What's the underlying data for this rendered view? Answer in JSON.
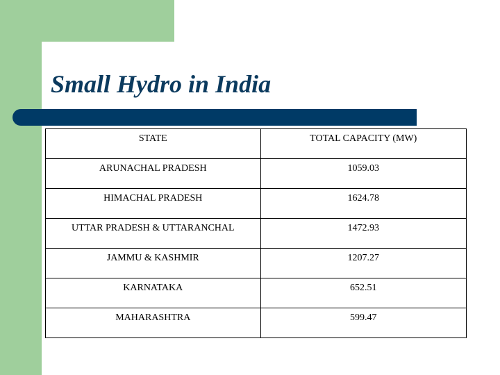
{
  "slide": {
    "title": "Small Hydro in India",
    "colors": {
      "accent_green": "#9fcf9c",
      "rule_blue": "#003a66",
      "title_color": "#0b3a5e"
    }
  },
  "table": {
    "headers": [
      "STATE",
      "TOTAL CAPACITY (MW)"
    ],
    "rows": [
      {
        "state": "ARUNACHAL PRADESH",
        "capacity": "1059.03"
      },
      {
        "state": "HIMACHAL PRADESH",
        "capacity": "1624.78"
      },
      {
        "state": "UTTAR PRADESH & UTTARANCHAL",
        "capacity": "1472.93"
      },
      {
        "state": "JAMMU & KASHMIR",
        "capacity": "1207.27"
      },
      {
        "state": "KARNATAKA",
        "capacity": "652.51"
      },
      {
        "state": "MAHARASHTRA",
        "capacity": "599.47"
      }
    ]
  }
}
